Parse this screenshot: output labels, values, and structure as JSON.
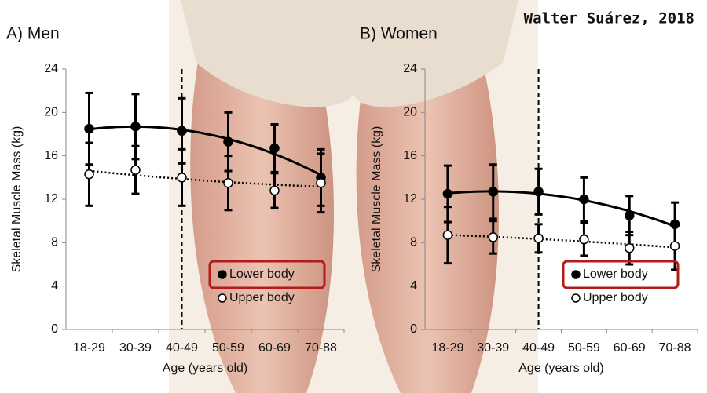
{
  "attribution": "Walter Suárez, 2018",
  "chart_data": [
    {
      "type": "line",
      "title": "A) Men",
      "xlabel": "Age (years old)",
      "ylabel": "Skeletal Muscle Mass (kg)",
      "categories": [
        "18-29",
        "30-39",
        "40-49",
        "50-59",
        "60-69",
        "70-88"
      ],
      "ylim": [
        0,
        24
      ],
      "yticks": [
        0,
        4,
        8,
        12,
        16,
        20,
        24
      ],
      "divider_at": "40-49",
      "legend": "lower right",
      "trendline": "polynomial",
      "series": [
        {
          "name": "Lower body",
          "color": "#000000",
          "marker_fill": "#000000",
          "line_style": "solid",
          "values": [
            18.5,
            18.7,
            18.3,
            17.3,
            16.7,
            14.0
          ],
          "errors": [
            3.3,
            3.0,
            3.0,
            2.7,
            2.2,
            2.6
          ]
        },
        {
          "name": "Upper body",
          "color": "#000000",
          "marker_fill": "#ffffff",
          "line_style": "dotted",
          "values": [
            14.3,
            14.7,
            14.0,
            13.5,
            12.8,
            13.5
          ],
          "errors": [
            2.9,
            2.2,
            2.6,
            2.5,
            1.6,
            2.7
          ]
        }
      ]
    },
    {
      "type": "line",
      "title": "B) Women",
      "xlabel": "Age (years old)",
      "ylabel": "Skeletal Muscle Mass (kg)",
      "categories": [
        "18-29",
        "30-39",
        "40-49",
        "50-59",
        "60-69",
        "70-88"
      ],
      "ylim": [
        0,
        24
      ],
      "yticks": [
        0,
        4,
        8,
        12,
        16,
        20,
        24
      ],
      "divider_at": "40-49",
      "legend": "lower right",
      "trendline": "polynomial",
      "series": [
        {
          "name": "Lower body",
          "color": "#000000",
          "marker_fill": "#000000",
          "line_style": "solid",
          "values": [
            12.5,
            12.7,
            12.7,
            12.0,
            10.5,
            9.7
          ],
          "errors": [
            2.6,
            2.5,
            2.1,
            2.0,
            1.8,
            2.0
          ]
        },
        {
          "name": "Upper body",
          "color": "#000000",
          "marker_fill": "#ffffff",
          "line_style": "dotted",
          "values": [
            8.7,
            8.5,
            8.4,
            8.3,
            7.5,
            7.7
          ],
          "errors": [
            2.6,
            1.5,
            1.3,
            1.5,
            1.5,
            2.2
          ]
        }
      ]
    }
  ]
}
